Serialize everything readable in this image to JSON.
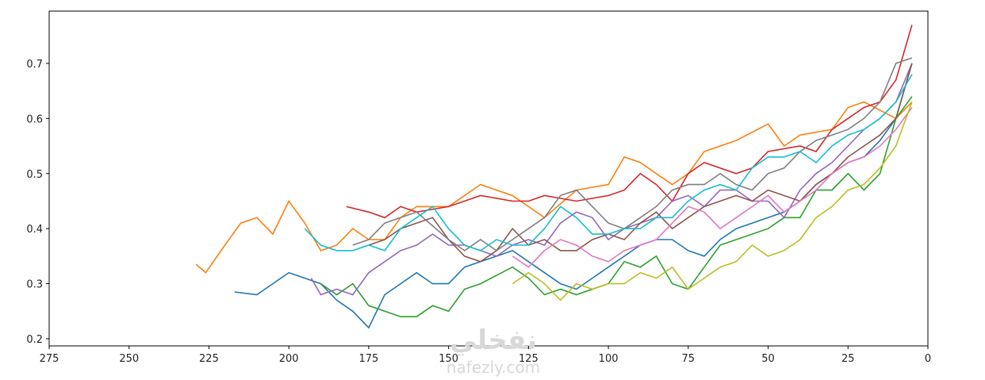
{
  "chart_data": {
    "type": "line",
    "xlim": [
      275,
      0
    ],
    "ylim": [
      0.187,
      0.795
    ],
    "xticks": [
      275,
      250,
      225,
      200,
      175,
      150,
      125,
      100,
      75,
      50,
      25,
      0
    ],
    "yticks": [
      0.2,
      0.3,
      0.4,
      0.5,
      0.6,
      0.7
    ],
    "watermark": [
      "نفخلي",
      "nafezly.com"
    ],
    "series": [
      {
        "color": "#1f77b4",
        "x": [
          217,
          210,
          205,
          200,
          195,
          190,
          185,
          180,
          175,
          170,
          165,
          160,
          155,
          150,
          145,
          140,
          135,
          130,
          125,
          120,
          115,
          110,
          105,
          100,
          95,
          90,
          85,
          80,
          75,
          70,
          65,
          60,
          55,
          50,
          45,
          40,
          35,
          30,
          25,
          20,
          15,
          10,
          5
        ],
        "values": [
          0.285,
          0.28,
          0.3,
          0.32,
          0.31,
          0.3,
          0.27,
          0.25,
          0.22,
          0.28,
          0.3,
          0.32,
          0.3,
          0.3,
          0.33,
          0.34,
          0.35,
          0.36,
          0.34,
          0.32,
          0.3,
          0.29,
          0.31,
          0.33,
          0.35,
          0.37,
          0.38,
          0.38,
          0.36,
          0.35,
          0.38,
          0.4,
          0.41,
          0.42,
          0.43,
          0.45,
          0.48,
          0.5,
          0.52,
          0.53,
          0.56,
          0.6,
          0.7
        ]
      },
      {
        "color": "#ff7f0e",
        "x": [
          229,
          226,
          220,
          215,
          210,
          205,
          200,
          195,
          190,
          185,
          180,
          175,
          170,
          165,
          160,
          150,
          140,
          130,
          125,
          120,
          110,
          100,
          95,
          90,
          85,
          80,
          75,
          70,
          60,
          50,
          45,
          40,
          30,
          25,
          20,
          10,
          5
        ],
        "values": [
          0.335,
          0.32,
          0.37,
          0.41,
          0.42,
          0.39,
          0.45,
          0.41,
          0.36,
          0.37,
          0.4,
          0.38,
          0.38,
          0.42,
          0.44,
          0.44,
          0.48,
          0.46,
          0.44,
          0.42,
          0.47,
          0.48,
          0.53,
          0.52,
          0.5,
          0.48,
          0.5,
          0.54,
          0.56,
          0.59,
          0.55,
          0.57,
          0.58,
          0.62,
          0.63,
          0.6,
          0.63
        ]
      },
      {
        "color": "#2ca02c",
        "x": [
          190,
          185,
          180,
          175,
          170,
          165,
          160,
          155,
          150,
          145,
          140,
          130,
          125,
          120,
          115,
          110,
          100,
          95,
          90,
          85,
          80,
          75,
          70,
          65,
          60,
          50,
          45,
          40,
          35,
          30,
          25,
          20,
          15,
          10,
          5
        ],
        "values": [
          0.3,
          0.28,
          0.3,
          0.26,
          0.25,
          0.24,
          0.24,
          0.26,
          0.25,
          0.29,
          0.3,
          0.33,
          0.31,
          0.28,
          0.29,
          0.28,
          0.3,
          0.34,
          0.33,
          0.35,
          0.3,
          0.29,
          0.33,
          0.37,
          0.38,
          0.4,
          0.42,
          0.42,
          0.47,
          0.47,
          0.5,
          0.47,
          0.5,
          0.6,
          0.64
        ]
      },
      {
        "color": "#d62728",
        "x": [
          182,
          175,
          170,
          165,
          160,
          150,
          140,
          130,
          125,
          120,
          110,
          100,
          95,
          90,
          85,
          80,
          75,
          70,
          60,
          55,
          50,
          40,
          35,
          30,
          25,
          20,
          15,
          10,
          5
        ],
        "values": [
          0.44,
          0.43,
          0.42,
          0.44,
          0.43,
          0.44,
          0.46,
          0.45,
          0.45,
          0.46,
          0.45,
          0.46,
          0.47,
          0.5,
          0.48,
          0.45,
          0.5,
          0.52,
          0.5,
          0.51,
          0.54,
          0.55,
          0.54,
          0.58,
          0.6,
          0.62,
          0.63,
          0.67,
          0.77
        ]
      },
      {
        "color": "#9467bd",
        "x": [
          193,
          190,
          185,
          180,
          175,
          170,
          165,
          160,
          155,
          150,
          145,
          140,
          135,
          130,
          125,
          120,
          115,
          110,
          105,
          100,
          95,
          90,
          85,
          80,
          75,
          70,
          65,
          60,
          55,
          50,
          45,
          40,
          35,
          30,
          25,
          20,
          15,
          10,
          5
        ],
        "values": [
          0.31,
          0.28,
          0.29,
          0.28,
          0.32,
          0.34,
          0.36,
          0.37,
          0.39,
          0.37,
          0.37,
          0.36,
          0.35,
          0.37,
          0.38,
          0.37,
          0.41,
          0.43,
          0.42,
          0.38,
          0.4,
          0.41,
          0.42,
          0.45,
          0.46,
          0.44,
          0.47,
          0.47,
          0.45,
          0.45,
          0.42,
          0.47,
          0.5,
          0.52,
          0.55,
          0.58,
          0.6,
          0.63,
          0.7
        ]
      },
      {
        "color": "#8c564b",
        "x": [
          175,
          170,
          165,
          160,
          155,
          150,
          145,
          140,
          135,
          130,
          125,
          120,
          115,
          110,
          105,
          100,
          95,
          90,
          85,
          80,
          75,
          70,
          65,
          60,
          55,
          50,
          45,
          40,
          35,
          30,
          25,
          20,
          15,
          10,
          5
        ],
        "values": [
          0.37,
          0.38,
          0.4,
          0.41,
          0.42,
          0.38,
          0.35,
          0.34,
          0.36,
          0.4,
          0.37,
          0.38,
          0.36,
          0.36,
          0.38,
          0.39,
          0.38,
          0.41,
          0.43,
          0.4,
          0.42,
          0.44,
          0.45,
          0.46,
          0.45,
          0.47,
          0.46,
          0.45,
          0.48,
          0.5,
          0.53,
          0.55,
          0.57,
          0.6,
          0.7
        ]
      },
      {
        "color": "#e377c2",
        "x": [
          130,
          125,
          120,
          115,
          110,
          105,
          100,
          95,
          90,
          85,
          80,
          75,
          70,
          65,
          60,
          55,
          50,
          45,
          40,
          35,
          30,
          25,
          20,
          15,
          10,
          5
        ],
        "values": [
          0.35,
          0.33,
          0.36,
          0.38,
          0.37,
          0.35,
          0.34,
          0.36,
          0.37,
          0.38,
          0.41,
          0.44,
          0.43,
          0.4,
          0.42,
          0.44,
          0.46,
          0.43,
          0.45,
          0.47,
          0.5,
          0.52,
          0.53,
          0.55,
          0.58,
          0.62
        ]
      },
      {
        "color": "#7f7f7f",
        "x": [
          180,
          175,
          170,
          165,
          160,
          150,
          145,
          140,
          135,
          130,
          125,
          120,
          115,
          110,
          105,
          100,
          95,
          90,
          85,
          80,
          75,
          70,
          65,
          60,
          55,
          50,
          45,
          40,
          35,
          30,
          25,
          20,
          15,
          10,
          5
        ],
        "values": [
          0.37,
          0.38,
          0.41,
          0.42,
          0.43,
          0.38,
          0.36,
          0.38,
          0.36,
          0.38,
          0.4,
          0.42,
          0.46,
          0.47,
          0.44,
          0.41,
          0.4,
          0.42,
          0.44,
          0.47,
          0.48,
          0.48,
          0.5,
          0.48,
          0.47,
          0.5,
          0.51,
          0.54,
          0.56,
          0.57,
          0.58,
          0.6,
          0.63,
          0.7,
          0.71
        ]
      },
      {
        "color": "#bcbd22",
        "x": [
          130,
          125,
          120,
          115,
          110,
          105,
          100,
          95,
          90,
          85,
          80,
          75,
          70,
          65,
          60,
          55,
          50,
          45,
          40,
          35,
          30,
          25,
          20,
          15,
          10,
          5
        ],
        "values": [
          0.3,
          0.32,
          0.3,
          0.27,
          0.3,
          0.29,
          0.3,
          0.3,
          0.32,
          0.31,
          0.33,
          0.29,
          0.31,
          0.33,
          0.34,
          0.37,
          0.35,
          0.36,
          0.38,
          0.42,
          0.44,
          0.47,
          0.48,
          0.51,
          0.55,
          0.63
        ]
      },
      {
        "color": "#17becf",
        "x": [
          195,
          190,
          185,
          180,
          175,
          170,
          165,
          160,
          155,
          150,
          145,
          140,
          135,
          130,
          125,
          120,
          115,
          110,
          105,
          100,
          95,
          90,
          85,
          80,
          75,
          70,
          65,
          60,
          55,
          50,
          45,
          40,
          35,
          30,
          25,
          20,
          15,
          10,
          5
        ],
        "values": [
          0.4,
          0.37,
          0.36,
          0.36,
          0.37,
          0.36,
          0.4,
          0.42,
          0.44,
          0.4,
          0.37,
          0.36,
          0.38,
          0.37,
          0.37,
          0.4,
          0.44,
          0.42,
          0.39,
          0.39,
          0.4,
          0.4,
          0.42,
          0.42,
          0.45,
          0.47,
          0.48,
          0.47,
          0.51,
          0.53,
          0.53,
          0.54,
          0.52,
          0.55,
          0.57,
          0.58,
          0.6,
          0.63,
          0.68
        ]
      }
    ]
  }
}
